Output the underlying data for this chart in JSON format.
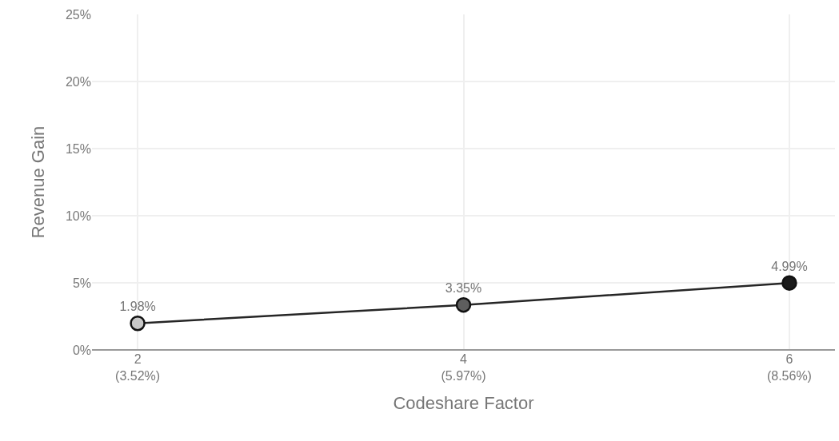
{
  "chart_data": {
    "type": "line",
    "xlabel": "Codeshare Factor",
    "ylabel": "Revenue Gain",
    "categories": [
      "2\n(3.52%)",
      "4\n(5.97%)",
      "6\n(8.56%)"
    ],
    "series": [
      {
        "color": "#262626",
        "colors": [
          "#c8c8c8",
          "#5e5e5e",
          "#1a1a1a"
        ],
        "values": [
          1.98,
          3.35,
          4.99
        ],
        "value_labels": [
          "1.98%",
          "3.35%",
          "4.99%"
        ]
      }
    ],
    "ylim": [
      0,
      25
    ],
    "yticks": [
      {
        "value": 0,
        "label": "0%"
      },
      {
        "value": 5,
        "label": "5%"
      },
      {
        "value": 10,
        "label": "10%"
      },
      {
        "value": 15,
        "label": "15%"
      },
      {
        "value": 20,
        "label": "20%"
      },
      {
        "value": 25,
        "label": "25%"
      }
    ],
    "grid": true,
    "marker": "circle",
    "line_style": "solid"
  }
}
